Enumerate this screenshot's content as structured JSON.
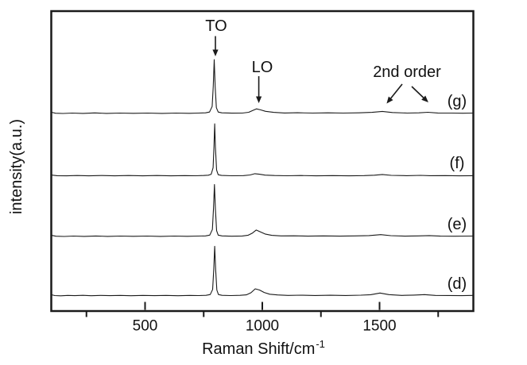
{
  "chart_data": {
    "type": "line",
    "title": "",
    "xlabel": "Raman Shift/cm^-1",
    "xlabel_main": "Raman Shift/cm",
    "xlabel_sup": "-1",
    "ylabel": "intensity(a.u.)",
    "xlim": [
      100,
      1900
    ],
    "ylim": [
      0,
      500
    ],
    "grid": false,
    "legend": "none",
    "line_color": "#1a1a1a",
    "x_major_ticks": [
      500,
      1000,
      1500
    ],
    "x_tick_labels": [
      "500",
      "1000",
      "1500"
    ],
    "x_minor_ticks": [
      250,
      750,
      1250,
      1750
    ],
    "annotations": [
      {
        "text": "TO",
        "points_to_shift": 800
      },
      {
        "text": "LO",
        "points_to_shift": 985
      },
      {
        "text": "2nd order",
        "points_to_shifts": [
          1530,
          1708
        ]
      }
    ],
    "series": [
      {
        "name": "(d)",
        "offset": 25,
        "to_peak_shift": 797,
        "to_peak_height": 83,
        "points": [
          [
            103,
            2
          ],
          [
            115,
            0.8
          ],
          [
            140,
            0.4
          ],
          [
            170,
            1
          ],
          [
            200,
            0.6
          ],
          [
            235,
            1.2
          ],
          [
            270,
            0.5
          ],
          [
            310,
            1
          ],
          [
            350,
            0.6
          ],
          [
            395,
            1
          ],
          [
            440,
            0.5
          ],
          [
            490,
            1
          ],
          [
            540,
            0.6
          ],
          [
            590,
            1
          ],
          [
            640,
            0.5
          ],
          [
            690,
            1
          ],
          [
            730,
            0.8
          ],
          [
            760,
            1.2
          ],
          [
            778,
            2.5
          ],
          [
            788,
            11
          ],
          [
            793,
            44
          ],
          [
            797,
            83
          ],
          [
            801,
            44
          ],
          [
            806,
            10
          ],
          [
            813,
            2.5
          ],
          [
            828,
            1.2
          ],
          [
            865,
            0.8
          ],
          [
            905,
            1.2
          ],
          [
            932,
            2
          ],
          [
            952,
            5.5
          ],
          [
            970,
            12
          ],
          [
            988,
            10
          ],
          [
            1008,
            6
          ],
          [
            1032,
            3
          ],
          [
            1065,
            1.8
          ],
          [
            1110,
            1
          ],
          [
            1165,
            1.4
          ],
          [
            1225,
            0.9
          ],
          [
            1290,
            1.3
          ],
          [
            1355,
            0.9
          ],
          [
            1420,
            1.4
          ],
          [
            1462,
            2.2
          ],
          [
            1502,
            5
          ],
          [
            1540,
            2.4
          ],
          [
            1595,
            1
          ],
          [
            1645,
            1.6
          ],
          [
            1692,
            2.4
          ],
          [
            1738,
            1.1
          ],
          [
            1795,
            0.9
          ],
          [
            1850,
            0.6
          ],
          [
            1897,
            1
          ]
        ]
      },
      {
        "name": "(e)",
        "offset": 124,
        "to_peak_shift": 796,
        "to_peak_height": 87,
        "points": [
          [
            103,
            2
          ],
          [
            120,
            0.7
          ],
          [
            155,
            0.4
          ],
          [
            195,
            1
          ],
          [
            240,
            0.5
          ],
          [
            290,
            1.1
          ],
          [
            340,
            0.5
          ],
          [
            395,
            1
          ],
          [
            450,
            0.6
          ],
          [
            510,
            1
          ],
          [
            565,
            0.5
          ],
          [
            625,
            1
          ],
          [
            680,
            0.6
          ],
          [
            725,
            1
          ],
          [
            758,
            1.3
          ],
          [
            776,
            2.6
          ],
          [
            787,
            12
          ],
          [
            792,
            47
          ],
          [
            796,
            87
          ],
          [
            800,
            46
          ],
          [
            805,
            10
          ],
          [
            812,
            2.6
          ],
          [
            828,
            1.2
          ],
          [
            870,
            0.8
          ],
          [
            915,
            1.1
          ],
          [
            940,
            2.4
          ],
          [
            958,
            6
          ],
          [
            974,
            11
          ],
          [
            992,
            8
          ],
          [
            1012,
            4.5
          ],
          [
            1040,
            2.2
          ],
          [
            1080,
            1.2
          ],
          [
            1135,
            1.4
          ],
          [
            1195,
            0.9
          ],
          [
            1260,
            1.3
          ],
          [
            1330,
            0.9
          ],
          [
            1395,
            1.3
          ],
          [
            1455,
            1.8
          ],
          [
            1505,
            3.4
          ],
          [
            1548,
            1.6
          ],
          [
            1610,
            0.9
          ],
          [
            1665,
            1.3
          ],
          [
            1712,
            1.8
          ],
          [
            1760,
            0.9
          ],
          [
            1820,
            0.8
          ],
          [
            1897,
            1
          ]
        ]
      },
      {
        "name": "(f)",
        "offset": 225,
        "to_peak_shift": 797,
        "to_peak_height": 87,
        "points": [
          [
            103,
            1.6
          ],
          [
            125,
            0.6
          ],
          [
            165,
            0.4
          ],
          [
            210,
            0.9
          ],
          [
            260,
            0.4
          ],
          [
            315,
            0.9
          ],
          [
            370,
            0.4
          ],
          [
            430,
            0.9
          ],
          [
            490,
            0.4
          ],
          [
            550,
            0.9
          ],
          [
            610,
            0.4
          ],
          [
            670,
            0.8
          ],
          [
            715,
            0.5
          ],
          [
            748,
            0.9
          ],
          [
            770,
            1.4
          ],
          [
            782,
            3
          ],
          [
            790,
            14
          ],
          [
            794,
            50
          ],
          [
            797,
            87
          ],
          [
            800,
            48
          ],
          [
            805,
            10
          ],
          [
            812,
            2.2
          ],
          [
            826,
            1
          ],
          [
            870,
            0.5
          ],
          [
            920,
            0.8
          ],
          [
            948,
            1.8
          ],
          [
            968,
            4
          ],
          [
            988,
            3
          ],
          [
            1012,
            1.6
          ],
          [
            1052,
            0.9
          ],
          [
            1105,
            0.5
          ],
          [
            1165,
            0.9
          ],
          [
            1230,
            0.4
          ],
          [
            1300,
            0.8
          ],
          [
            1370,
            0.4
          ],
          [
            1435,
            0.8
          ],
          [
            1478,
            1.4
          ],
          [
            1512,
            2.6
          ],
          [
            1550,
            1.2
          ],
          [
            1615,
            0.6
          ],
          [
            1675,
            1.2
          ],
          [
            1715,
            0.6
          ],
          [
            1780,
            0.8
          ],
          [
            1840,
            0.4
          ],
          [
            1897,
            0.6
          ]
        ]
      },
      {
        "name": "(g)",
        "offset": 329,
        "to_peak_shift": 795,
        "to_peak_height": 90,
        "points": [
          [
            103,
            2.2
          ],
          [
            118,
            0.8
          ],
          [
            150,
            0.4
          ],
          [
            190,
            1
          ],
          [
            235,
            0.5
          ],
          [
            285,
            1.3
          ],
          [
            335,
            0.5
          ],
          [
            392,
            1
          ],
          [
            450,
            0.6
          ],
          [
            512,
            1
          ],
          [
            572,
            0.5
          ],
          [
            632,
            1
          ],
          [
            688,
            0.6
          ],
          [
            728,
            1
          ],
          [
            758,
            1.4
          ],
          [
            775,
            2.8
          ],
          [
            786,
            12
          ],
          [
            791,
            46
          ],
          [
            795,
            90
          ],
          [
            799,
            45
          ],
          [
            804,
            10
          ],
          [
            812,
            2.8
          ],
          [
            827,
            1.4
          ],
          [
            870,
            0.9
          ],
          [
            915,
            1
          ],
          [
            942,
            2.4
          ],
          [
            960,
            5.5
          ],
          [
            975,
            8
          ],
          [
            992,
            6.5
          ],
          [
            1014,
            4
          ],
          [
            1048,
            2.2
          ],
          [
            1095,
            1.2
          ],
          [
            1150,
            1.5
          ],
          [
            1215,
            1
          ],
          [
            1280,
            1.4
          ],
          [
            1345,
            1
          ],
          [
            1412,
            1.4
          ],
          [
            1468,
            2.2
          ],
          [
            1512,
            3.8
          ],
          [
            1555,
            1.9
          ],
          [
            1618,
            1
          ],
          [
            1668,
            1.4
          ],
          [
            1706,
            2.4
          ],
          [
            1748,
            1.2
          ],
          [
            1808,
            1
          ],
          [
            1855,
            0.8
          ],
          [
            1897,
            1
          ]
        ]
      }
    ]
  }
}
